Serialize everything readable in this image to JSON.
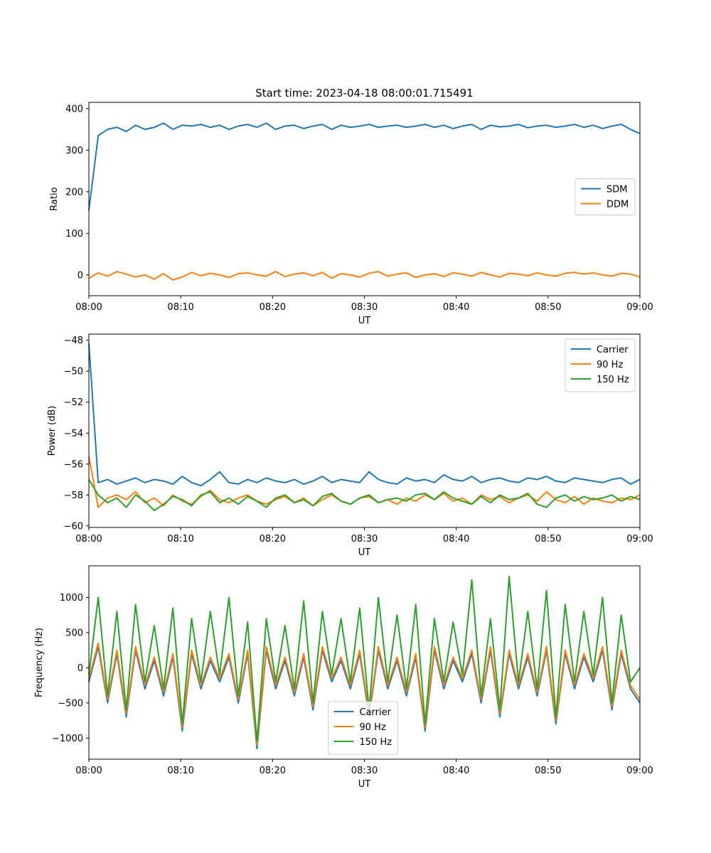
{
  "figure": {
    "title": "Start time: 2023-04-18 08:00:01.715491"
  },
  "chart_data": [
    {
      "type": "line",
      "xlabel": "UT",
      "ylabel": "Ratio",
      "xlim": [
        "08:00",
        "09:00"
      ],
      "xticks": [
        "08:00",
        "08:10",
        "08:20",
        "08:30",
        "08:40",
        "08:50",
        "09:00"
      ],
      "ylim": [
        -50,
        415
      ],
      "yticks": [
        0,
        100,
        200,
        300,
        400
      ],
      "legend_position": "center-right",
      "grid": false,
      "series": [
        {
          "name": "SDM",
          "color": "#1f77b4",
          "values": [
            155,
            335,
            350,
            355,
            345,
            360,
            350,
            355,
            365,
            350,
            360,
            358,
            362,
            355,
            360,
            350,
            358,
            362,
            355,
            365,
            350,
            358,
            360,
            352,
            358,
            362,
            350,
            360,
            355,
            358,
            362,
            355,
            358,
            360,
            355,
            358,
            362,
            355,
            360,
            352,
            358,
            362,
            350,
            360,
            356,
            358,
            362,
            354,
            358,
            360,
            355,
            358,
            362,
            355,
            360,
            352,
            358,
            362,
            350,
            340
          ]
        },
        {
          "name": "DDM",
          "color": "#ff7f0e",
          "values": [
            -8,
            5,
            -3,
            8,
            2,
            -5,
            0,
            -10,
            3,
            -12,
            -5,
            6,
            -2,
            4,
            0,
            -6,
            3,
            5,
            0,
            -3,
            8,
            -4,
            2,
            5,
            -2,
            6,
            -8,
            3,
            0,
            -5,
            4,
            8,
            -3,
            2,
            5,
            -6,
            0,
            3,
            -4,
            5,
            2,
            -3,
            6,
            0,
            -5,
            4,
            2,
            -2,
            5,
            0,
            -3,
            4,
            6,
            2,
            5,
            0,
            -3,
            4,
            2,
            -5
          ]
        }
      ]
    },
    {
      "type": "line",
      "xlabel": "UT",
      "ylabel": "Power (dB)",
      "xlim": [
        "08:00",
        "09:00"
      ],
      "xticks": [
        "08:00",
        "08:10",
        "08:20",
        "08:30",
        "08:40",
        "08:50",
        "09:00"
      ],
      "ylim": [
        -60.1,
        -47.6
      ],
      "yticks": [
        -60,
        -58,
        -56,
        -54,
        -52,
        -50,
        -48
      ],
      "legend_position": "top-right",
      "grid": false,
      "series": [
        {
          "name": "Carrier",
          "color": "#1f77b4",
          "values": [
            -48.2,
            -57.2,
            -57.0,
            -57.3,
            -57.1,
            -56.9,
            -57.2,
            -57.0,
            -57.1,
            -57.3,
            -56.8,
            -57.2,
            -57.4,
            -57.0,
            -56.5,
            -57.2,
            -57.3,
            -57.0,
            -57.2,
            -56.9,
            -57.1,
            -57.2,
            -57.0,
            -57.3,
            -57.1,
            -56.8,
            -57.2,
            -57.0,
            -57.1,
            -57.2,
            -56.5,
            -57.0,
            -57.2,
            -57.3,
            -56.9,
            -57.1,
            -57.0,
            -57.2,
            -56.7,
            -57.0,
            -57.1,
            -56.8,
            -57.2,
            -57.0,
            -56.9,
            -57.1,
            -57.2,
            -56.9,
            -57.0,
            -56.8,
            -57.1,
            -57.2,
            -56.9,
            -57.0,
            -57.1,
            -57.2,
            -57.0,
            -56.9,
            -57.3,
            -57.0
          ]
        },
        {
          "name": "90 Hz",
          "color": "#ff7f0e",
          "values": [
            -55.5,
            -58.8,
            -58.2,
            -58.0,
            -58.3,
            -57.8,
            -58.5,
            -58.2,
            -58.7,
            -58.0,
            -58.4,
            -58.6,
            -58.1,
            -57.7,
            -58.3,
            -58.5,
            -58.2,
            -58.0,
            -58.4,
            -58.6,
            -58.3,
            -58.1,
            -58.5,
            -58.2,
            -58.7,
            -58.3,
            -58.0,
            -58.4,
            -58.6,
            -58.2,
            -58.1,
            -58.5,
            -58.3,
            -58.6,
            -58.2,
            -58.4,
            -58.0,
            -58.3,
            -57.9,
            -58.4,
            -58.2,
            -58.6,
            -58.0,
            -58.3,
            -58.1,
            -58.5,
            -58.2,
            -58.0,
            -58.4,
            -57.8,
            -58.3,
            -58.5,
            -58.1,
            -58.6,
            -58.2,
            -58.4,
            -58.5,
            -58.2,
            -58.3,
            -58.0
          ]
        },
        {
          "name": "150 Hz",
          "color": "#2ca02c",
          "values": [
            -57.0,
            -58.0,
            -58.5,
            -58.2,
            -58.8,
            -58.0,
            -58.4,
            -59.0,
            -58.6,
            -58.1,
            -58.3,
            -58.7,
            -58.0,
            -57.8,
            -58.5,
            -58.2,
            -58.6,
            -58.1,
            -58.4,
            -58.8,
            -58.2,
            -58.0,
            -58.5,
            -58.3,
            -58.7,
            -58.1,
            -57.9,
            -58.4,
            -58.6,
            -58.2,
            -58.0,
            -58.5,
            -58.3,
            -58.2,
            -58.4,
            -58.0,
            -57.9,
            -58.3,
            -57.8,
            -58.2,
            -58.4,
            -58.6,
            -58.1,
            -58.5,
            -58.0,
            -58.3,
            -58.2,
            -57.9,
            -58.6,
            -58.8,
            -58.2,
            -58.0,
            -58.4,
            -58.1,
            -58.3,
            -58.2,
            -58.0,
            -58.4,
            -58.1,
            -58.3
          ]
        }
      ]
    },
    {
      "type": "line",
      "xlabel": "UT",
      "ylabel": "Frequency (Hz)",
      "xlim": [
        "08:00",
        "09:00"
      ],
      "xticks": [
        "08:00",
        "08:10",
        "08:20",
        "08:30",
        "08:40",
        "08:50",
        "09:00"
      ],
      "ylim": [
        -1300,
        1450
      ],
      "yticks": [
        -1000,
        -500,
        0,
        500,
        1000
      ],
      "legend_position": "bottom-center",
      "grid": false,
      "series": [
        {
          "name": "Carrier",
          "color": "#1f77b4",
          "values": [
            -200,
            300,
            -500,
            200,
            -700,
            250,
            -300,
            100,
            -400,
            150,
            -900,
            200,
            -300,
            100,
            -200,
            150,
            -500,
            200,
            -1150,
            250,
            -300,
            100,
            -400,
            150,
            -600,
            250,
            -200,
            100,
            -300,
            200,
            -700,
            250,
            -300,
            100,
            -400,
            150,
            -900,
            250,
            -300,
            100,
            -200,
            200,
            -500,
            250,
            -700,
            200,
            -300,
            150,
            -400,
            250,
            -800,
            200,
            -300,
            150,
            -200,
            250,
            -600,
            200,
            -300,
            -500
          ]
        },
        {
          "name": "90 Hz",
          "color": "#ff7f0e",
          "values": [
            -150,
            350,
            -450,
            250,
            -650,
            300,
            -250,
            150,
            -350,
            200,
            -850,
            250,
            -250,
            150,
            -150,
            200,
            -450,
            250,
            -1100,
            300,
            -250,
            150,
            -350,
            200,
            -550,
            300,
            -150,
            150,
            -250,
            250,
            -650,
            300,
            -250,
            150,
            -350,
            200,
            -850,
            300,
            -250,
            150,
            -150,
            250,
            -450,
            300,
            -650,
            250,
            -250,
            200,
            -350,
            300,
            -750,
            250,
            -250,
            200,
            -150,
            300,
            -550,
            250,
            -250,
            -450
          ]
        },
        {
          "name": "150 Hz",
          "color": "#2ca02c",
          "values": [
            -100,
            1000,
            -400,
            800,
            -600,
            900,
            -200,
            600,
            -300,
            850,
            -800,
            700,
            -200,
            800,
            -100,
            1000,
            -400,
            650,
            -1050,
            700,
            -200,
            600,
            -300,
            950,
            -500,
            800,
            -100,
            700,
            -200,
            850,
            -600,
            1000,
            -200,
            750,
            -300,
            900,
            -800,
            700,
            -200,
            650,
            -100,
            1250,
            -400,
            700,
            -600,
            1300,
            -200,
            800,
            -300,
            1100,
            -700,
            900,
            -200,
            800,
            -100,
            1000,
            -500,
            750,
            -200,
            0
          ]
        }
      ]
    }
  ]
}
